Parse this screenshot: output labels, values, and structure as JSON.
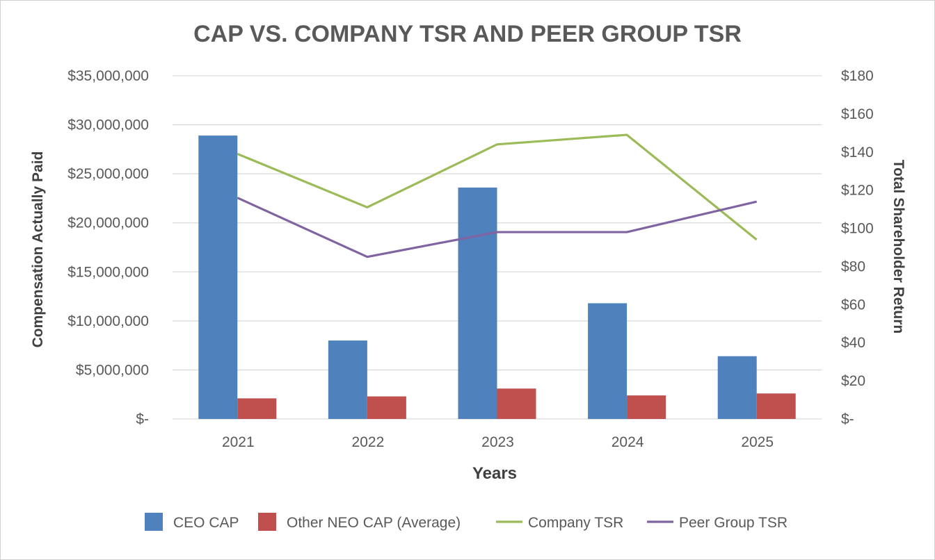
{
  "chart_data": {
    "type": "bar",
    "title": "CAP VS. COMPANY TSR AND PEER GROUP TSR",
    "xlabel": "Years",
    "ylabel": "Compensation Actually Paid",
    "y2label": "Total Shareholder Return",
    "categories": [
      "2021",
      "2022",
      "2023",
      "2024",
      "2025"
    ],
    "ylim": [
      0,
      35000000
    ],
    "y2lim": [
      0,
      180
    ],
    "y_ticks": [
      {
        "value": 0,
        "label": "$-"
      },
      {
        "value": 5000000,
        "label": "$5,000,000"
      },
      {
        "value": 10000000,
        "label": "$10,000,000"
      },
      {
        "value": 15000000,
        "label": "$15,000,000"
      },
      {
        "value": 20000000,
        "label": "$20,000,000"
      },
      {
        "value": 25000000,
        "label": "$25,000,000"
      },
      {
        "value": 30000000,
        "label": "$30,000,000"
      },
      {
        "value": 35000000,
        "label": "$35,000,000"
      }
    ],
    "y2_ticks": [
      {
        "value": 0,
        "label": "$-"
      },
      {
        "value": 20,
        "label": "$20"
      },
      {
        "value": 40,
        "label": "$40"
      },
      {
        "value": 60,
        "label": "$60"
      },
      {
        "value": 80,
        "label": "$80"
      },
      {
        "value": 100,
        "label": "$100"
      },
      {
        "value": 120,
        "label": "$120"
      },
      {
        "value": 140,
        "label": "$140"
      },
      {
        "value": 160,
        "label": "$160"
      },
      {
        "value": 180,
        "label": "$180"
      }
    ],
    "grid": true,
    "legend_position": "bottom",
    "bar_series": [
      {
        "name": "CEO CAP",
        "color": "#4f81bd",
        "values": [
          28900000,
          8000000,
          23600000,
          11800000,
          6400000
        ]
      },
      {
        "name": "Other NEO CAP (Average)",
        "color": "#c0504d",
        "values": [
          2100000,
          2300000,
          3100000,
          2400000,
          2600000
        ]
      }
    ],
    "line_series": [
      {
        "name": "Company TSR",
        "color": "#9bbb59",
        "axis": "right",
        "values": [
          139,
          111,
          144,
          149,
          94
        ]
      },
      {
        "name": "Peer Group TSR",
        "color": "#8064a2",
        "axis": "right",
        "values": [
          116,
          85,
          98,
          98,
          114
        ]
      }
    ]
  }
}
